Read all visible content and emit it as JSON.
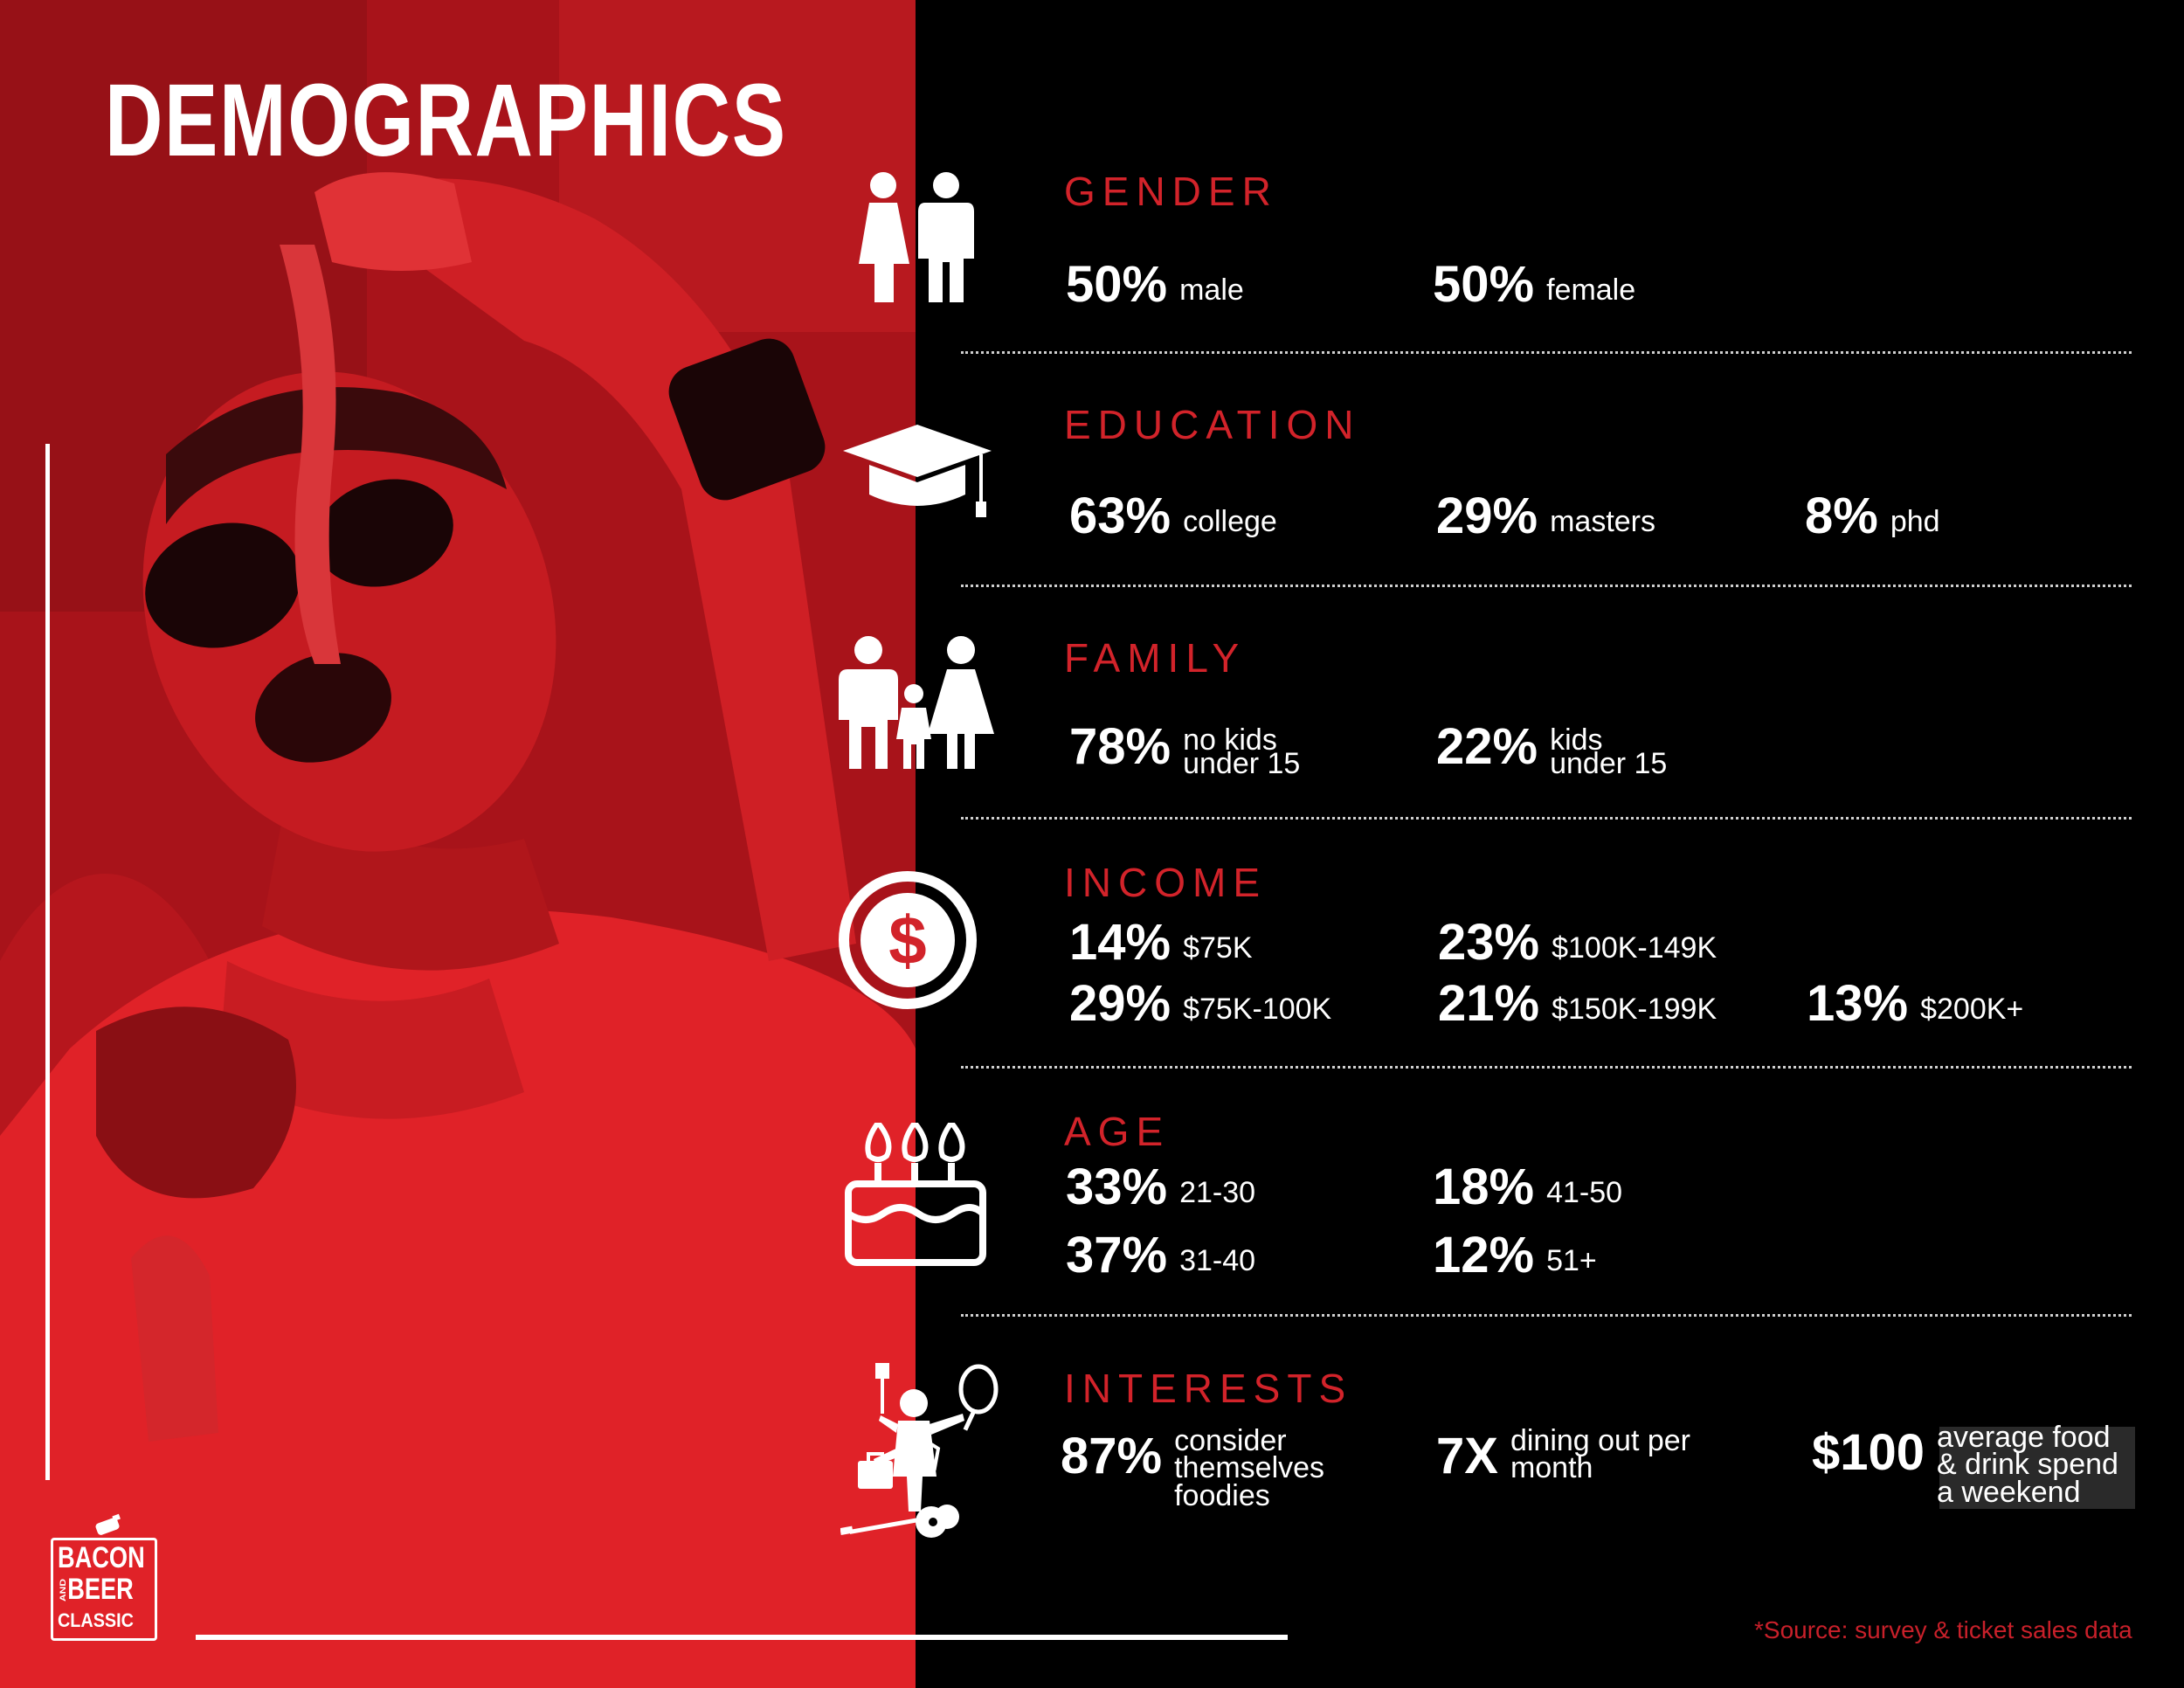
{
  "title": "DEMOGRAPHICS",
  "logo": {
    "line1": "BACON",
    "line2": "AND",
    "line3": "BEER",
    "line4": "CLASSIC"
  },
  "colors": {
    "accent": "#d2232a",
    "panel_red": "#b3141a",
    "background": "#000000"
  },
  "sections": {
    "gender": {
      "title": "GENDER",
      "icon": "couple-icon",
      "stats": [
        {
          "value": "50%",
          "label": "male"
        },
        {
          "value": "50%",
          "label": "female"
        }
      ]
    },
    "education": {
      "title": "EDUCATION",
      "icon": "graduation-cap-icon",
      "stats": [
        {
          "value": "63%",
          "label": "college"
        },
        {
          "value": "29%",
          "label": "masters"
        },
        {
          "value": "8%",
          "label": "phd"
        }
      ]
    },
    "family": {
      "title": "FAMILY",
      "icon": "family-icon",
      "stats": [
        {
          "value": "78%",
          "label_line1": "no kids",
          "label_line2": "under 15"
        },
        {
          "value": "22%",
          "label_line1": "kids",
          "label_line2": "under 15"
        }
      ]
    },
    "income": {
      "title": "INCOME",
      "icon": "dollar-coin-icon",
      "stats": [
        {
          "value": "14%",
          "label": "$75K"
        },
        {
          "value": "23%",
          "label": "$100K-149K"
        },
        {
          "value": "29%",
          "label": "$75K-100K"
        },
        {
          "value": "21%",
          "label": "$150K-199K"
        },
        {
          "value": "13%",
          "label": "$200K+"
        }
      ]
    },
    "age": {
      "title": "AGE",
      "icon": "birthday-cake-icon",
      "stats": [
        {
          "value": "33%",
          "label": "21-30"
        },
        {
          "value": "18%",
          "label": "41-50"
        },
        {
          "value": "37%",
          "label": "31-40"
        },
        {
          "value": "12%",
          "label": "51+"
        }
      ]
    },
    "interests": {
      "title": "INTERESTS",
      "icon": "hobbies-person-icon",
      "stats": [
        {
          "value": "87%",
          "label_line1": "consider",
          "label_line2": "themselves",
          "label_line3": "foodies"
        },
        {
          "value": "7X",
          "label_line1": "dining out per",
          "label_line2": "month"
        },
        {
          "value": "$100",
          "label_line1": "average food",
          "label_line2": "& drink spend",
          "label_line3": "a weekend"
        }
      ]
    }
  },
  "source_note": "*Source: survey & ticket sales data"
}
